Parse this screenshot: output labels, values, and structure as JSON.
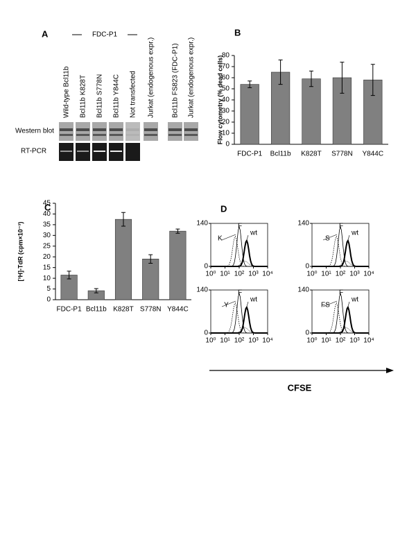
{
  "panel_a": {
    "label": "A",
    "group_label": "FDC-P1",
    "lanes": [
      "Wild-type Bcl11b",
      "Bcl11b K828T",
      "Bcl11b S778N",
      "Bcl11b Y844C",
      "Not transfected",
      "Jurkat (endogenous expr.)",
      "Bcl11b FS823  (FDC-P1)",
      "Jurkat (endogenous expr.)"
    ],
    "rows": [
      "Western blot",
      "RT-PCR"
    ]
  },
  "chart_data": [
    {
      "type": "bar",
      "label": "B",
      "y_label": "Flow cytometry (% dead cells)",
      "categories": [
        "FDC-P1",
        "Bcl11b",
        "K828T",
        "S778N",
        "Y844C"
      ],
      "values": [
        54,
        65,
        59,
        60,
        58
      ],
      "errors": [
        3,
        11,
        7,
        14,
        14
      ],
      "color": "#808080",
      "ylim": [
        0,
        80
      ],
      "yticks": [
        0,
        10,
        20,
        30,
        40,
        50,
        60,
        70,
        80
      ]
    },
    {
      "type": "bar",
      "label": "C",
      "y_label": "[³H]-TdR (cpm×10⁻³)",
      "categories": [
        "FDC-P1",
        "Bcl11b",
        "K828T",
        "S778N",
        "Y844C"
      ],
      "values": [
        11.5,
        4.2,
        37.5,
        19,
        32
      ],
      "errors": [
        1.8,
        1,
        3.2,
        2,
        1
      ],
      "color": "#808080",
      "ylim": [
        0,
        45
      ],
      "yticks": [
        0,
        5,
        10,
        15,
        20,
        25,
        30,
        35,
        40,
        45
      ]
    },
    {
      "type": "flow",
      "label": "D",
      "x_label": "CFSE",
      "log_x": true,
      "xlim": [
        1,
        10000
      ],
      "xticks": [
        {
          "value": 1,
          "label": "10⁰"
        },
        {
          "value": 10,
          "label": "10¹"
        },
        {
          "value": 100,
          "label": "10²"
        },
        {
          "value": 1000,
          "label": "10³"
        },
        {
          "value": 10000,
          "label": "10⁴"
        }
      ],
      "ylim": [
        0,
        140
      ],
      "yticks": [
        0,
        140
      ],
      "panels": [
        {
          "annotations": [
            "K",
            "F",
            "wt"
          ]
        },
        {
          "annotations": [
            "S",
            "F",
            "wt"
          ]
        },
        {
          "annotations": [
            "Y",
            "F",
            "wt"
          ]
        },
        {
          "annotations": [
            "FS",
            "F",
            "wt"
          ]
        }
      ]
    }
  ]
}
